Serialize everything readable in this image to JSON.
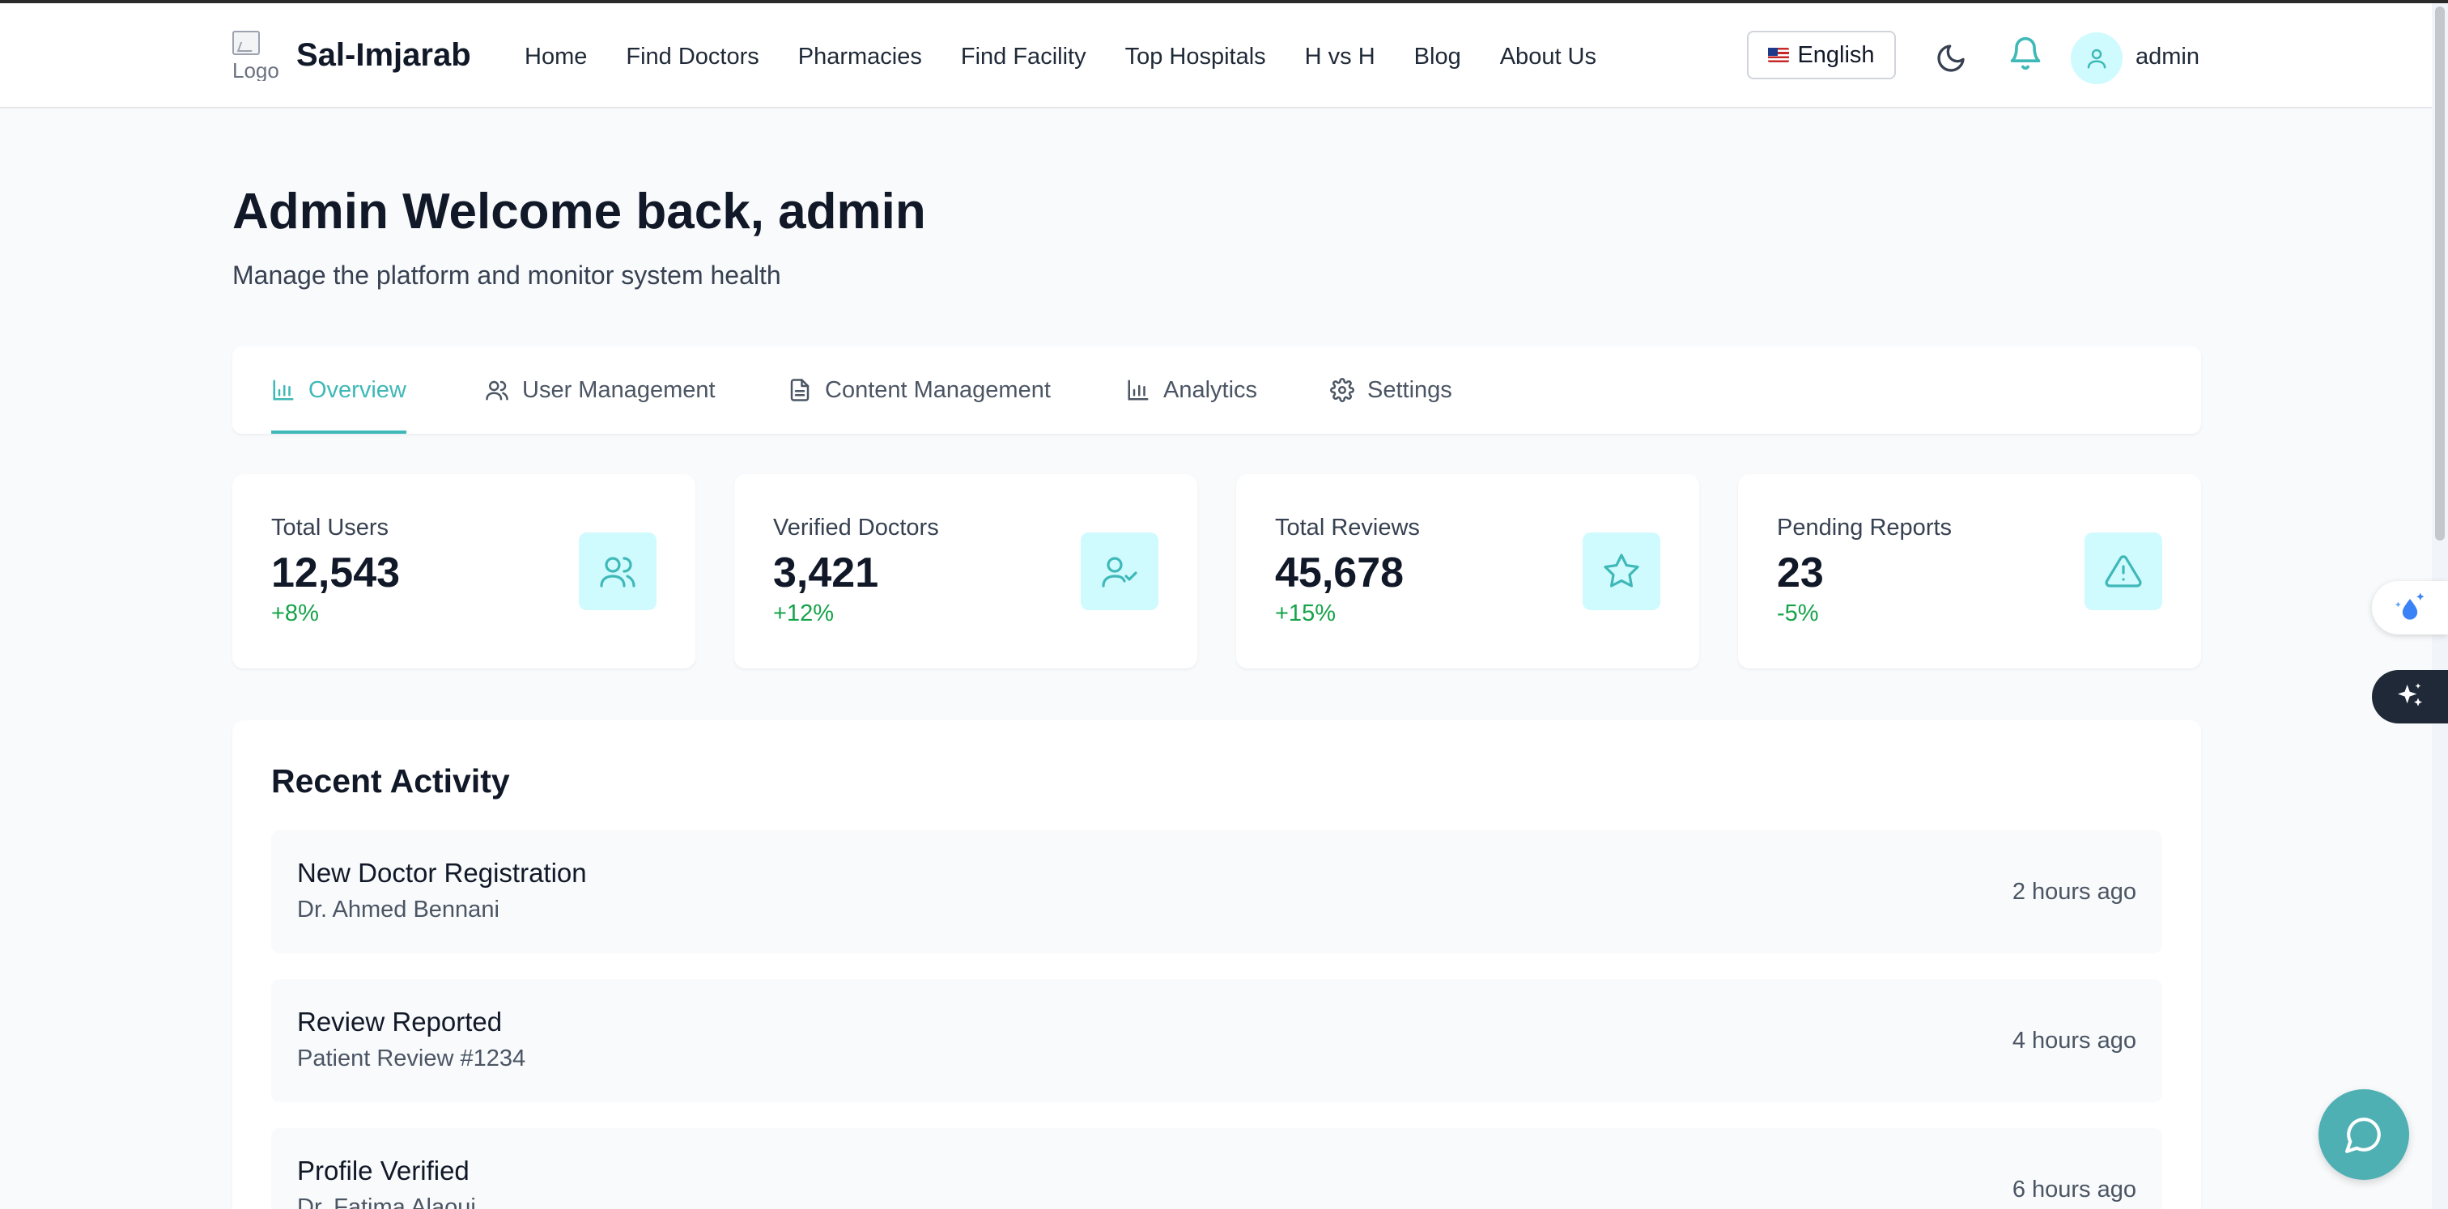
{
  "header": {
    "logo_alt": "Logo",
    "brand": "Sal-Imjarab",
    "nav": [
      "Home",
      "Find Doctors",
      "Pharmacies",
      "Find Facility",
      "Top Hospitals",
      "H vs H",
      "Blog",
      "About Us"
    ],
    "language": "English",
    "user": "admin"
  },
  "page": {
    "title": "Admin Welcome back, admin",
    "subtitle": "Manage the platform and monitor system health"
  },
  "tabs": [
    {
      "label": "Overview",
      "icon": "bar-chart-icon",
      "active": true
    },
    {
      "label": "User Management",
      "icon": "users-icon",
      "active": false
    },
    {
      "label": "Content Management",
      "icon": "file-icon",
      "active": false
    },
    {
      "label": "Analytics",
      "icon": "bar-chart-icon",
      "active": false
    },
    {
      "label": "Settings",
      "icon": "gear-icon",
      "active": false
    }
  ],
  "stats": [
    {
      "label": "Total Users",
      "value": "12,543",
      "change": "+8%",
      "icon": "users-icon"
    },
    {
      "label": "Verified Doctors",
      "value": "3,421",
      "change": "+12%",
      "icon": "user-check-icon"
    },
    {
      "label": "Total Reviews",
      "value": "45,678",
      "change": "+15%",
      "icon": "star-icon"
    },
    {
      "label": "Pending Reports",
      "value": "23",
      "change": "-5%",
      "icon": "alert-triangle-icon"
    }
  ],
  "activity": {
    "title": "Recent Activity",
    "items": [
      {
        "title": "New Doctor Registration",
        "subtitle": "Dr. Ahmed Bennani",
        "time": "2 hours ago"
      },
      {
        "title": "Review Reported",
        "subtitle": "Patient Review #1234",
        "time": "4 hours ago"
      },
      {
        "title": "Profile Verified",
        "subtitle": "Dr. Fatima Alaoui",
        "time": "6 hours ago"
      }
    ]
  },
  "colors": {
    "accent": "#3fb8b8",
    "icon_bg": "#cffafe",
    "positive": "#16a34a",
    "chat_fab": "#4fb0b4"
  }
}
